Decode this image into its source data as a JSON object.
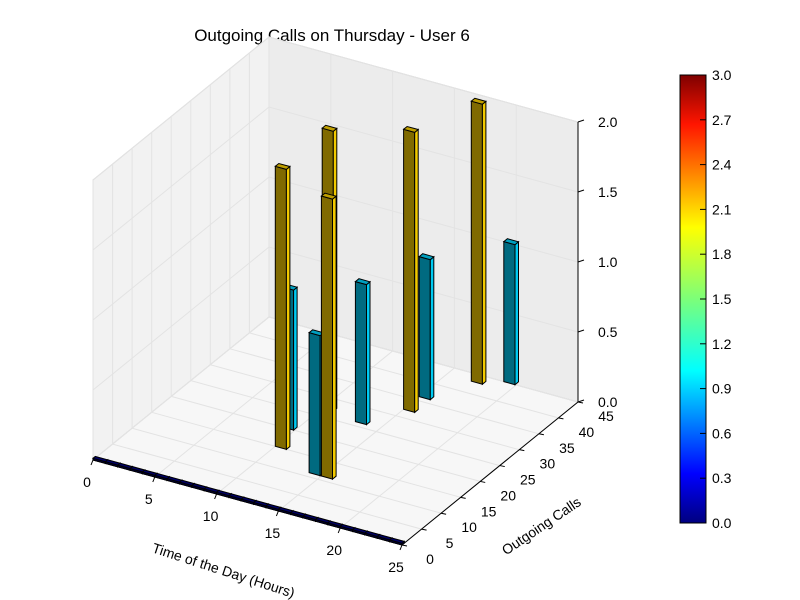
{
  "chart_data": {
    "type": "bar3d",
    "title": "Outgoing Calls on Thursday - User 6",
    "xlabel": "Time of the Day (Hours)",
    "ylabel": "Outgoing Calls",
    "zlabel": "",
    "xlim": [
      0,
      25
    ],
    "ylim": [
      0,
      45
    ],
    "zlim": [
      0,
      2.0
    ],
    "xticks": [
      "0",
      "5",
      "10",
      "15",
      "20",
      "25"
    ],
    "yticks": [
      "0",
      "5",
      "10",
      "15",
      "20",
      "25",
      "30",
      "35",
      "40",
      "45"
    ],
    "zticks": [
      "0.0",
      "0.5",
      "1.0",
      "1.5",
      "2.0"
    ],
    "grid": true,
    "colormap": "jet",
    "colorbar": {
      "range": [
        0.0,
        3.0
      ],
      "ticks": [
        "0.0",
        "0.3",
        "0.6",
        "0.9",
        "1.2",
        "1.5",
        "1.8",
        "2.1",
        "2.4",
        "2.7",
        "3.0"
      ]
    },
    "bars": [
      {
        "x": 9,
        "y": 20,
        "z": 1
      },
      {
        "x": 10,
        "y": 15,
        "z": 2
      },
      {
        "x": 10,
        "y": 27,
        "z": 2
      },
      {
        "x": 13,
        "y": 26,
        "z": 1
      },
      {
        "x": 14,
        "y": 11,
        "z": 1
      },
      {
        "x": 15,
        "y": 11,
        "z": 2
      },
      {
        "x": 15,
        "y": 36,
        "z": 1
      },
      {
        "x": 15,
        "y": 32,
        "z": 2
      },
      {
        "x": 17,
        "y": 43,
        "z": 2
      },
      {
        "x": 19,
        "y": 45,
        "z": 1
      }
    ],
    "baseline": {
      "x_start": 0,
      "x_end": 24,
      "y": 0,
      "z": 0
    }
  }
}
